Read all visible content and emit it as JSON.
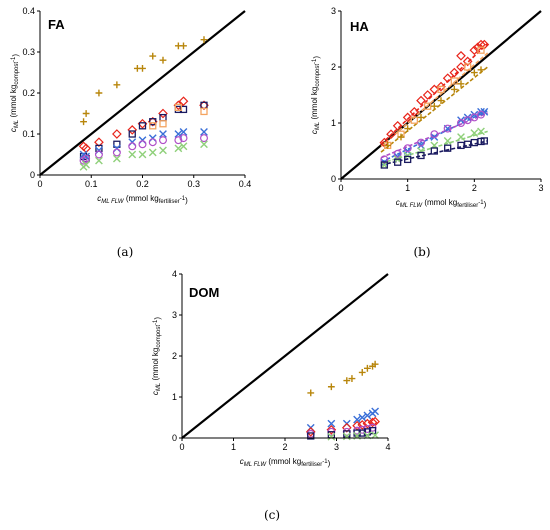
{
  "chart_data": [
    {
      "type": "scatter",
      "panel_label": "FA",
      "caption": "(a)",
      "xlabel": {
        "main": "c",
        "sub": "ML FLW",
        "unit_pre": " (mmol kg",
        "unit_sub": "fertiliser",
        "unit_post": "-1)"
      },
      "ylabel": {
        "main": "c",
        "sub": "ML",
        "unit_pre": " (mmol kg",
        "unit_sub": "compost",
        "unit_post": "-1)"
      },
      "xlim": [
        0,
        0.4
      ],
      "ylim": [
        0,
        0.4
      ],
      "xticks": [
        "0",
        "0.1",
        "0.2",
        "0.3",
        "0.4"
      ],
      "yticks": [
        "0",
        "0.1",
        "0.2",
        "0.3",
        "0.4"
      ],
      "xtick_values": [
        0,
        0.1,
        0.2,
        0.3,
        0.4
      ],
      "ytick_values": [
        0,
        0.1,
        0.2,
        0.3,
        0.4
      ],
      "one_to_one_line": true,
      "series": [
        {
          "marker": "plus",
          "color": "#b8860b",
          "points": [
            [
              0.085,
              0.13
            ],
            [
              0.09,
              0.15
            ],
            [
              0.115,
              0.2
            ],
            [
              0.15,
              0.22
            ],
            [
              0.19,
              0.26
            ],
            [
              0.2,
              0.26
            ],
            [
              0.22,
              0.29
            ],
            [
              0.24,
              0.28
            ],
            [
              0.27,
              0.315
            ],
            [
              0.28,
              0.315
            ],
            [
              0.32,
              0.33
            ]
          ]
        },
        {
          "marker": "diamond",
          "color": "#e8241a",
          "points": [
            [
              0.085,
              0.07
            ],
            [
              0.09,
              0.065
            ],
            [
              0.115,
              0.08
            ],
            [
              0.15,
              0.1
            ],
            [
              0.18,
              0.11
            ],
            [
              0.2,
              0.125
            ],
            [
              0.22,
              0.13
            ],
            [
              0.24,
              0.15
            ],
            [
              0.27,
              0.17
            ],
            [
              0.28,
              0.18
            ],
            [
              0.32,
              0.17
            ]
          ]
        },
        {
          "marker": "square",
          "color": "#1a1a60",
          "points": [
            [
              0.085,
              0.045
            ],
            [
              0.09,
              0.04
            ],
            [
              0.115,
              0.065
            ],
            [
              0.15,
              0.075
            ],
            [
              0.18,
              0.1
            ],
            [
              0.2,
              0.12
            ],
            [
              0.22,
              0.13
            ],
            [
              0.24,
              0.14
            ],
            [
              0.27,
              0.16
            ],
            [
              0.28,
              0.16
            ],
            [
              0.32,
              0.17
            ]
          ]
        },
        {
          "marker": "square",
          "color": "#f4a460",
          "points": [
            [
              0.22,
              0.12
            ],
            [
              0.24,
              0.125
            ],
            [
              0.27,
              0.165
            ],
            [
              0.32,
              0.155
            ]
          ]
        },
        {
          "marker": "x",
          "color": "#3a6fd8",
          "points": [
            [
              0.085,
              0.05
            ],
            [
              0.09,
              0.045
            ],
            [
              0.115,
              0.06
            ],
            [
              0.15,
              0.065
            ],
            [
              0.18,
              0.08
            ],
            [
              0.2,
              0.085
            ],
            [
              0.22,
              0.09
            ],
            [
              0.24,
              0.1
            ],
            [
              0.27,
              0.1
            ],
            [
              0.28,
              0.105
            ],
            [
              0.32,
              0.105
            ]
          ]
        },
        {
          "marker": "circle",
          "color": "#b04fc8",
          "points": [
            [
              0.085,
              0.035
            ],
            [
              0.09,
              0.04
            ],
            [
              0.115,
              0.05
            ],
            [
              0.15,
              0.055
            ],
            [
              0.18,
              0.07
            ],
            [
              0.2,
              0.075
            ],
            [
              0.22,
              0.08
            ],
            [
              0.24,
              0.085
            ],
            [
              0.27,
              0.085
            ],
            [
              0.28,
              0.09
            ],
            [
              0.32,
              0.09
            ]
          ]
        },
        {
          "marker": "x",
          "color": "#8fd07a",
          "points": [
            [
              0.085,
              0.02
            ],
            [
              0.09,
              0.025
            ],
            [
              0.115,
              0.035
            ],
            [
              0.15,
              0.04
            ],
            [
              0.18,
              0.05
            ],
            [
              0.2,
              0.05
            ],
            [
              0.22,
              0.055
            ],
            [
              0.24,
              0.06
            ],
            [
              0.27,
              0.065
            ],
            [
              0.28,
              0.07
            ],
            [
              0.32,
              0.075
            ]
          ]
        }
      ]
    },
    {
      "type": "scatter",
      "panel_label": "HA",
      "caption": "(b)",
      "xlabel": {
        "main": "c",
        "sub": "ML FLW",
        "unit_pre": " (mmol kg",
        "unit_sub": "fertiliser",
        "unit_post": "-1)"
      },
      "ylabel": {
        "main": "c",
        "sub": "ML",
        "unit_pre": " (mmol kg",
        "unit_sub": "compost",
        "unit_post": "-1)"
      },
      "xlim": [
        0,
        3
      ],
      "ylim": [
        0,
        3
      ],
      "xticks": [
        "0",
        "1",
        "2",
        "3"
      ],
      "yticks": [
        "0",
        "1",
        "2",
        "3"
      ],
      "xtick_values": [
        0,
        1,
        2,
        3
      ],
      "ytick_values": [
        0,
        1,
        2,
        3
      ],
      "one_to_one_line": true,
      "fit_lines": [
        {
          "color": "#e8241a",
          "x": [
            0.6,
            2.2
          ],
          "y": [
            0.62,
            2.42
          ]
        },
        {
          "color": "#f4a460",
          "x": [
            0.6,
            2.2
          ],
          "y": [
            0.58,
            2.25
          ]
        },
        {
          "color": "#b8860b",
          "x": [
            0.6,
            2.2
          ],
          "y": [
            0.48,
            2.0
          ]
        },
        {
          "color": "#3a6fd8",
          "x": [
            0.6,
            2.2
          ],
          "y": [
            0.3,
            1.22
          ]
        },
        {
          "color": "#b04fc8",
          "x": [
            0.6,
            2.2
          ],
          "y": [
            0.38,
            1.18
          ]
        },
        {
          "color": "#8fd07a",
          "x": [
            0.6,
            2.2
          ],
          "y": [
            0.28,
            0.85
          ]
        },
        {
          "color": "#1a1a60",
          "x": [
            0.6,
            2.2
          ],
          "y": [
            0.25,
            0.68
          ]
        }
      ],
      "series": [
        {
          "marker": "diamond",
          "color": "#e8241a",
          "points": [
            [
              0.65,
              0.65
            ],
            [
              0.75,
              0.8
            ],
            [
              0.85,
              0.95
            ],
            [
              1.0,
              1.1
            ],
            [
              1.1,
              1.2
            ],
            [
              1.2,
              1.4
            ],
            [
              1.3,
              1.5
            ],
            [
              1.4,
              1.6
            ],
            [
              1.5,
              1.65
            ],
            [
              1.6,
              1.8
            ],
            [
              1.7,
              1.9
            ],
            [
              1.8,
              2.0
            ],
            [
              1.9,
              2.1
            ],
            [
              2.0,
              2.3
            ],
            [
              2.05,
              2.35
            ],
            [
              2.1,
              2.4
            ],
            [
              2.15,
              2.4
            ],
            [
              1.8,
              2.2
            ]
          ]
        },
        {
          "marker": "square",
          "color": "#f4a460",
          "points": [
            [
              0.7,
              0.6
            ],
            [
              0.9,
              0.8
            ],
            [
              1.1,
              1.05
            ],
            [
              1.3,
              1.3
            ],
            [
              1.5,
              1.6
            ],
            [
              1.7,
              1.75
            ],
            [
              1.9,
              2.0
            ],
            [
              2.1,
              2.3
            ]
          ]
        },
        {
          "marker": "plus",
          "color": "#b8860b",
          "points": [
            [
              0.7,
              0.6
            ],
            [
              0.9,
              0.75
            ],
            [
              1.0,
              0.9
            ],
            [
              1.2,
              1.1
            ],
            [
              1.4,
              1.3
            ],
            [
              1.5,
              1.4
            ],
            [
              1.7,
              1.6
            ],
            [
              1.8,
              1.7
            ],
            [
              2.0,
              1.9
            ],
            [
              2.1,
              1.95
            ]
          ]
        },
        {
          "marker": "x",
          "color": "#3a6fd8",
          "points": [
            [
              0.65,
              0.3
            ],
            [
              0.85,
              0.4
            ],
            [
              1.0,
              0.5
            ],
            [
              1.2,
              0.6
            ],
            [
              1.4,
              0.75
            ],
            [
              1.6,
              0.9
            ],
            [
              1.8,
              1.05
            ],
            [
              1.9,
              1.1
            ],
            [
              2.0,
              1.15
            ],
            [
              2.1,
              1.2
            ],
            [
              2.15,
              1.2
            ]
          ]
        },
        {
          "marker": "circle",
          "color": "#b04fc8",
          "points": [
            [
              0.65,
              0.35
            ],
            [
              0.85,
              0.45
            ],
            [
              1.0,
              0.55
            ],
            [
              1.2,
              0.65
            ],
            [
              1.4,
              0.8
            ],
            [
              1.6,
              0.9
            ],
            [
              1.8,
              1.0
            ],
            [
              1.9,
              1.05
            ],
            [
              2.0,
              1.1
            ],
            [
              2.1,
              1.15
            ]
          ]
        },
        {
          "marker": "x",
          "color": "#8fd07a",
          "points": [
            [
              0.65,
              0.25
            ],
            [
              0.85,
              0.35
            ],
            [
              1.0,
              0.42
            ],
            [
              1.2,
              0.5
            ],
            [
              1.4,
              0.6
            ],
            [
              1.6,
              0.68
            ],
            [
              1.8,
              0.75
            ],
            [
              2.0,
              0.82
            ],
            [
              2.1,
              0.85
            ]
          ]
        },
        {
          "marker": "square",
          "color": "#1a1a60",
          "points": [
            [
              0.65,
              0.25
            ],
            [
              0.85,
              0.3
            ],
            [
              1.0,
              0.35
            ],
            [
              1.2,
              0.42
            ],
            [
              1.4,
              0.5
            ],
            [
              1.6,
              0.55
            ],
            [
              1.8,
              0.6
            ],
            [
              1.9,
              0.62
            ],
            [
              2.0,
              0.65
            ],
            [
              2.1,
              0.67
            ],
            [
              2.15,
              0.68
            ]
          ]
        }
      ]
    },
    {
      "type": "scatter",
      "panel_label": "DOM",
      "caption": "(c)",
      "xlabel": {
        "main": "c",
        "sub": "ML FLW",
        "unit_pre": " (mmol kg",
        "unit_sub": "fertiliser",
        "unit_post": "-1)"
      },
      "ylabel": {
        "main": "c",
        "sub": "ML",
        "unit_pre": " (mmol kg",
        "unit_sub": "compost",
        "unit_post": "-1)"
      },
      "xlim": [
        0,
        4
      ],
      "ylim": [
        0,
        4
      ],
      "xticks": [
        "0",
        "1",
        "2",
        "3",
        "4"
      ],
      "yticks": [
        "0",
        "1",
        "2",
        "3",
        "4"
      ],
      "xtick_values": [
        0,
        1,
        2,
        3,
        4
      ],
      "ytick_values": [
        0,
        1,
        2,
        3,
        4
      ],
      "one_to_one_line": true,
      "series": [
        {
          "marker": "plus",
          "color": "#b8860b",
          "points": [
            [
              2.5,
              1.1
            ],
            [
              2.9,
              1.25
            ],
            [
              3.2,
              1.4
            ],
            [
              3.3,
              1.45
            ],
            [
              3.5,
              1.6
            ],
            [
              3.6,
              1.7
            ],
            [
              3.7,
              1.75
            ],
            [
              3.75,
              1.8
            ]
          ]
        },
        {
          "marker": "x",
          "color": "#3a6fd8",
          "points": [
            [
              2.5,
              0.25
            ],
            [
              2.9,
              0.35
            ],
            [
              3.2,
              0.35
            ],
            [
              3.4,
              0.45
            ],
            [
              3.5,
              0.5
            ],
            [
              3.6,
              0.55
            ],
            [
              3.7,
              0.6
            ],
            [
              3.75,
              0.65
            ]
          ]
        },
        {
          "marker": "diamond",
          "color": "#e8241a",
          "points": [
            [
              2.5,
              0.15
            ],
            [
              2.9,
              0.2
            ],
            [
              3.2,
              0.25
            ],
            [
              3.4,
              0.3
            ],
            [
              3.5,
              0.32
            ],
            [
              3.6,
              0.35
            ],
            [
              3.7,
              0.38
            ],
            [
              3.75,
              0.4
            ]
          ]
        },
        {
          "marker": "circle",
          "color": "#b04fc8",
          "points": [
            [
              2.5,
              0.1
            ],
            [
              2.9,
              0.15
            ],
            [
              3.2,
              0.15
            ],
            [
              3.4,
              0.18
            ],
            [
              3.5,
              0.2
            ],
            [
              3.6,
              0.22
            ],
            [
              3.7,
              0.25
            ]
          ]
        },
        {
          "marker": "square",
          "color": "#1a1a60",
          "points": [
            [
              2.5,
              0.05
            ],
            [
              2.9,
              0.08
            ],
            [
              3.2,
              0.1
            ],
            [
              3.4,
              0.12
            ],
            [
              3.5,
              0.12
            ],
            [
              3.6,
              0.15
            ],
            [
              3.7,
              0.18
            ]
          ]
        },
        {
          "marker": "x",
          "color": "#8fd07a",
          "points": [
            [
              2.9,
              0.03
            ],
            [
              3.2,
              0.04
            ],
            [
              3.4,
              0.05
            ],
            [
              3.6,
              0.06
            ],
            [
              3.75,
              0.07
            ]
          ]
        }
      ]
    }
  ]
}
